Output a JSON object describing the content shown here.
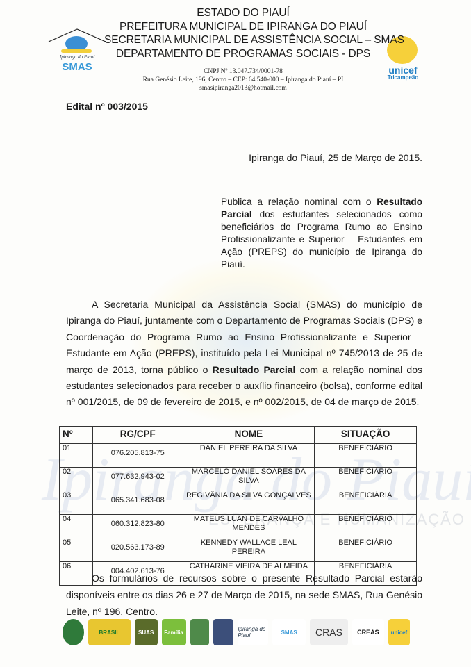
{
  "header": {
    "lines": [
      "ESTADO DO PIAUÍ",
      "PREFEITURA MUNICIPAL DE IPIRANGA DO PIAUÍ",
      "SECRETARIA MUNICIPAL DE ASSISTÊNCIA SOCIAL – SMAS",
      "DEPARTAMENTO DE PROGRAMAS SOCIAIS - DPS"
    ],
    "cnpj": "CNPJ Nº 13.047.734/0001-78",
    "address": "Rua Genésio Leite, 196, Centro – CEP: 64.540-000 – Ipiranga do Piauí – PI",
    "email": "smasipiranga2013@hotmail.com",
    "left_logo": {
      "caption": "Ipiranga do Piauí",
      "text": "SMAS"
    },
    "right_logo": {
      "arc": "MUNICÍPIO APROVADO",
      "text": "unicef",
      "sub": "Tricampeão"
    }
  },
  "edital": "Edital nº 003/2015",
  "date": "Ipiranga do Piauí, 25 de Março de 2015.",
  "abstract": {
    "pre": "Publica a relação nominal com o ",
    "bold": "Resultado Parcial",
    "post": " dos estudantes selecionados como beneficiários do Programa Rumo ao Ensino Profissionalizante e Superior – Estudantes em Ação (PREPS) do município de Ipiranga do Piauí."
  },
  "body": {
    "pre": "A Secretaria Municipal da Assistência Social (SMAS) do município de Ipiranga do Piauí, juntamente com o Departamento de Programas Sociais (DPS) e Coordenação do Programa Rumo ao Ensino Profissionalizante e Superior – Estudante em Ação (PREPS), instituído pela Lei Municipal nº 745/2013 de 25 de março de 2013, torna público o ",
    "bold": "Resultado Parcial",
    "post": " com a relação nominal dos estudantes selecionados para receber o auxílio financeiro (bolsa), conforme edital nº 001/2015, de 09 de fevereiro de 2015, e nº 002/2015, de 04 de março de 2015."
  },
  "table": {
    "headers": [
      "Nº",
      "RG/CPF",
      "NOME",
      "SITUAÇÃO"
    ],
    "rows": [
      [
        "01",
        "076.205.813-75",
        "DANIEL PEREIRA DA SILVA",
        "BENEFICIÁRIO"
      ],
      [
        "02",
        "077.632.943-02",
        "MARCELO DANIEL SOARES DA SILVA",
        "BENEFICIÁRIO"
      ],
      [
        "03",
        "065.341.683-08",
        "REGIVÂNIA DA SILVA GONÇALVES",
        "BENEFICIÁRIA"
      ],
      [
        "04",
        "060.312.823-80",
        "MATEUS LUAN DE CARVALHO MENDES",
        "BENEFICIÁRIO"
      ],
      [
        "05",
        "020.563.173-89",
        "KENNEDY WALLACE LEAL PEREIRA",
        "BENEFICIÁRIO"
      ],
      [
        "06",
        "004.402.613-76",
        "CATHARINE VIEIRA DE ALMEIDA",
        "BENEFICIÁRIA"
      ]
    ]
  },
  "closing": "Os formulários de recursos sobre o presente Resultado Parcial estarão disponíveis entre os dias 26 e 27 de Março de 2015, na sede SMAS, Rua Genésio Leite, nº 196, Centro.",
  "watermark": {
    "main": "Ipiranga do Piauí",
    "sub": "ESPERANÇA E HUMANIZAÇÃO"
  },
  "footer_logos": [
    "BRASIL",
    "SUAS",
    "Família",
    "Brasão",
    "Brasão",
    "Ipiranga do Piauí",
    "SMAS",
    "CRAS",
    "CREAS",
    "unicef"
  ]
}
